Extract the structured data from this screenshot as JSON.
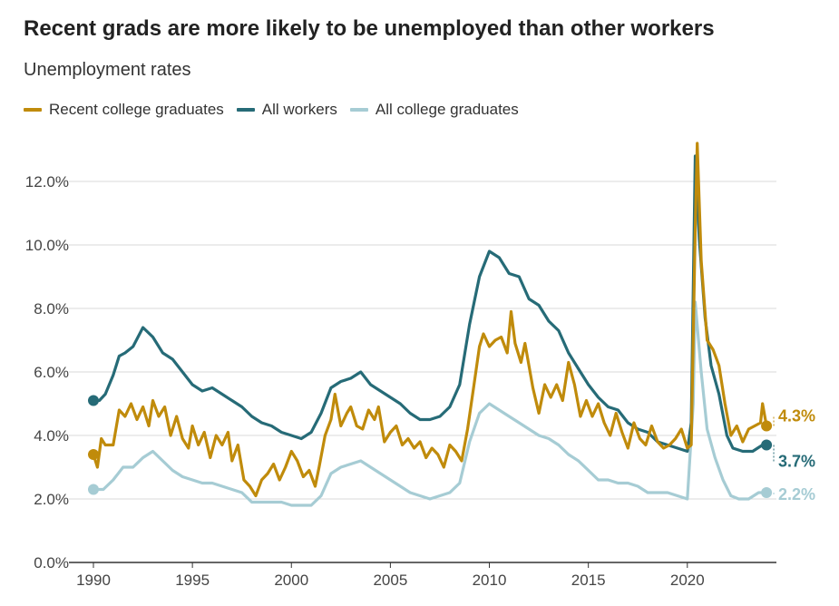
{
  "title": "Recent grads are more likely to be unemployed than other workers",
  "subtitle": "Unemployment rates",
  "colors": {
    "recent": "#c08b0b",
    "all_workers": "#266b77",
    "all_college": "#a6ccd4",
    "grid": "#d9d9d9",
    "axis": "#333333"
  },
  "chart_data": {
    "type": "line",
    "xlim": [
      1990,
      2024.5
    ],
    "ylim": [
      0,
      13
    ],
    "grid": true,
    "legend": "top-left",
    "x_ticks": [
      1990,
      1995,
      2000,
      2005,
      2010,
      2015,
      2020
    ],
    "x_tick_labels": [
      "1990",
      "1995",
      "2000",
      "2005",
      "2010",
      "2015",
      "2020"
    ],
    "y_ticks": [
      0,
      2,
      4,
      6,
      8,
      10,
      12
    ],
    "y_tick_labels": [
      "0.0%",
      "2.0%",
      "4.0%",
      "6.0%",
      "8.0%",
      "10.0%",
      "12.0%"
    ],
    "series": [
      {
        "name": "Recent college graduates",
        "key": "recent",
        "end_label": "4.3%",
        "points": [
          [
            1990,
            3.4
          ],
          [
            1990.2,
            3.0
          ],
          [
            1990.4,
            3.9
          ],
          [
            1990.6,
            3.7
          ],
          [
            1991,
            3.7
          ],
          [
            1991.3,
            4.8
          ],
          [
            1991.6,
            4.6
          ],
          [
            1991.9,
            5.0
          ],
          [
            1992.2,
            4.5
          ],
          [
            1992.5,
            4.9
          ],
          [
            1992.8,
            4.3
          ],
          [
            1993,
            5.1
          ],
          [
            1993.3,
            4.6
          ],
          [
            1993.6,
            4.9
          ],
          [
            1993.9,
            4.0
          ],
          [
            1994.2,
            4.6
          ],
          [
            1994.5,
            3.9
          ],
          [
            1994.8,
            3.6
          ],
          [
            1995,
            4.3
          ],
          [
            1995.3,
            3.7
          ],
          [
            1995.6,
            4.1
          ],
          [
            1995.9,
            3.3
          ],
          [
            1996.2,
            4.0
          ],
          [
            1996.5,
            3.7
          ],
          [
            1996.8,
            4.1
          ],
          [
            1997,
            3.2
          ],
          [
            1997.3,
            3.7
          ],
          [
            1997.6,
            2.6
          ],
          [
            1997.9,
            2.4
          ],
          [
            1998.2,
            2.1
          ],
          [
            1998.5,
            2.6
          ],
          [
            1998.8,
            2.8
          ],
          [
            1999.1,
            3.1
          ],
          [
            1999.4,
            2.6
          ],
          [
            1999.7,
            3.0
          ],
          [
            2000,
            3.5
          ],
          [
            2000.3,
            3.2
          ],
          [
            2000.6,
            2.7
          ],
          [
            2000.9,
            2.9
          ],
          [
            2001.2,
            2.4
          ],
          [
            2001.4,
            3.0
          ],
          [
            2001.7,
            4.0
          ],
          [
            2002,
            4.5
          ],
          [
            2002.2,
            5.3
          ],
          [
            2002.5,
            4.3
          ],
          [
            2002.8,
            4.7
          ],
          [
            2003,
            4.9
          ],
          [
            2003.3,
            4.3
          ],
          [
            2003.6,
            4.2
          ],
          [
            2003.9,
            4.8
          ],
          [
            2004.2,
            4.5
          ],
          [
            2004.4,
            4.9
          ],
          [
            2004.7,
            3.8
          ],
          [
            2005,
            4.1
          ],
          [
            2005.3,
            4.3
          ],
          [
            2005.6,
            3.7
          ],
          [
            2005.9,
            3.9
          ],
          [
            2006.2,
            3.6
          ],
          [
            2006.5,
            3.8
          ],
          [
            2006.8,
            3.3
          ],
          [
            2007.1,
            3.6
          ],
          [
            2007.4,
            3.4
          ],
          [
            2007.7,
            3.0
          ],
          [
            2008,
            3.7
          ],
          [
            2008.3,
            3.5
          ],
          [
            2008.6,
            3.2
          ],
          [
            2008.9,
            4.2
          ],
          [
            2009.2,
            5.5
          ],
          [
            2009.5,
            6.8
          ],
          [
            2009.7,
            7.2
          ],
          [
            2010,
            6.8
          ],
          [
            2010.3,
            7.0
          ],
          [
            2010.6,
            7.1
          ],
          [
            2010.9,
            6.6
          ],
          [
            2011.1,
            7.9
          ],
          [
            2011.3,
            6.9
          ],
          [
            2011.6,
            6.3
          ],
          [
            2011.8,
            6.9
          ],
          [
            2012.2,
            5.5
          ],
          [
            2012.5,
            4.7
          ],
          [
            2012.8,
            5.6
          ],
          [
            2013.1,
            5.2
          ],
          [
            2013.4,
            5.6
          ],
          [
            2013.7,
            5.1
          ],
          [
            2014,
            6.3
          ],
          [
            2014.3,
            5.6
          ],
          [
            2014.6,
            4.6
          ],
          [
            2014.9,
            5.1
          ],
          [
            2015.2,
            4.6
          ],
          [
            2015.5,
            5.0
          ],
          [
            2015.8,
            4.4
          ],
          [
            2016.1,
            4.0
          ],
          [
            2016.4,
            4.7
          ],
          [
            2016.7,
            4.1
          ],
          [
            2017,
            3.6
          ],
          [
            2017.3,
            4.4
          ],
          [
            2017.6,
            3.9
          ],
          [
            2017.9,
            3.7
          ],
          [
            2018.2,
            4.3
          ],
          [
            2018.5,
            3.8
          ],
          [
            2018.8,
            3.6
          ],
          [
            2019.1,
            3.7
          ],
          [
            2019.4,
            3.9
          ],
          [
            2019.7,
            4.2
          ],
          [
            2020,
            3.6
          ],
          [
            2020.2,
            3.7
          ],
          [
            2020.4,
            10.5
          ],
          [
            2020.5,
            13.2
          ],
          [
            2020.7,
            9.5
          ],
          [
            2021,
            7.0
          ],
          [
            2021.3,
            6.7
          ],
          [
            2021.6,
            6.2
          ],
          [
            2021.9,
            5.0
          ],
          [
            2022.2,
            4.0
          ],
          [
            2022.5,
            4.3
          ],
          [
            2022.8,
            3.8
          ],
          [
            2023.1,
            4.2
          ],
          [
            2023.4,
            4.3
          ],
          [
            2023.7,
            4.4
          ],
          [
            2023.8,
            5.0
          ],
          [
            2024,
            4.3
          ]
        ]
      },
      {
        "name": "All workers",
        "key": "all_workers",
        "end_label": "3.7%",
        "points": [
          [
            1990,
            5.1
          ],
          [
            1990.3,
            5.1
          ],
          [
            1990.6,
            5.3
          ],
          [
            1991,
            5.9
          ],
          [
            1991.3,
            6.5
          ],
          [
            1991.6,
            6.6
          ],
          [
            1992,
            6.8
          ],
          [
            1992.5,
            7.4
          ],
          [
            1993,
            7.1
          ],
          [
            1993.5,
            6.6
          ],
          [
            1994,
            6.4
          ],
          [
            1994.5,
            6.0
          ],
          [
            1995,
            5.6
          ],
          [
            1995.5,
            5.4
          ],
          [
            1996,
            5.5
          ],
          [
            1996.5,
            5.3
          ],
          [
            1997,
            5.1
          ],
          [
            1997.5,
            4.9
          ],
          [
            1998,
            4.6
          ],
          [
            1998.5,
            4.4
          ],
          [
            1999,
            4.3
          ],
          [
            1999.5,
            4.1
          ],
          [
            2000,
            4.0
          ],
          [
            2000.5,
            3.9
          ],
          [
            2001,
            4.1
          ],
          [
            2001.5,
            4.7
          ],
          [
            2002,
            5.5
          ],
          [
            2002.5,
            5.7
          ],
          [
            2003,
            5.8
          ],
          [
            2003.5,
            6.0
          ],
          [
            2004,
            5.6
          ],
          [
            2004.5,
            5.4
          ],
          [
            2005,
            5.2
          ],
          [
            2005.5,
            5.0
          ],
          [
            2006,
            4.7
          ],
          [
            2006.5,
            4.5
          ],
          [
            2007,
            4.5
          ],
          [
            2007.5,
            4.6
          ],
          [
            2008,
            4.9
          ],
          [
            2008.5,
            5.6
          ],
          [
            2009,
            7.5
          ],
          [
            2009.5,
            9.0
          ],
          [
            2010,
            9.8
          ],
          [
            2010.5,
            9.6
          ],
          [
            2011,
            9.1
          ],
          [
            2011.5,
            9.0
          ],
          [
            2012,
            8.3
          ],
          [
            2012.5,
            8.1
          ],
          [
            2013,
            7.6
          ],
          [
            2013.5,
            7.3
          ],
          [
            2014,
            6.6
          ],
          [
            2014.5,
            6.1
          ],
          [
            2015,
            5.6
          ],
          [
            2015.5,
            5.2
          ],
          [
            2016,
            4.9
          ],
          [
            2016.5,
            4.8
          ],
          [
            2017,
            4.4
          ],
          [
            2017.5,
            4.2
          ],
          [
            2018,
            4.1
          ],
          [
            2018.5,
            3.8
          ],
          [
            2019,
            3.7
          ],
          [
            2019.5,
            3.6
          ],
          [
            2020,
            3.5
          ],
          [
            2020.2,
            4.4
          ],
          [
            2020.4,
            12.8
          ],
          [
            2020.6,
            10.2
          ],
          [
            2020.9,
            7.7
          ],
          [
            2021.2,
            6.2
          ],
          [
            2021.6,
            5.3
          ],
          [
            2022,
            4.0
          ],
          [
            2022.3,
            3.6
          ],
          [
            2022.8,
            3.5
          ],
          [
            2023.3,
            3.5
          ],
          [
            2023.8,
            3.7
          ],
          [
            2024,
            3.7
          ]
        ]
      },
      {
        "name": "All college graduates",
        "key": "all_college",
        "end_label": "2.2%",
        "points": [
          [
            1990,
            2.3
          ],
          [
            1990.5,
            2.3
          ],
          [
            1991,
            2.6
          ],
          [
            1991.5,
            3.0
          ],
          [
            1992,
            3.0
          ],
          [
            1992.5,
            3.3
          ],
          [
            1993,
            3.5
          ],
          [
            1993.5,
            3.2
          ],
          [
            1994,
            2.9
          ],
          [
            1994.5,
            2.7
          ],
          [
            1995,
            2.6
          ],
          [
            1995.5,
            2.5
          ],
          [
            1996,
            2.5
          ],
          [
            1996.5,
            2.4
          ],
          [
            1997,
            2.3
          ],
          [
            1997.5,
            2.2
          ],
          [
            1998,
            1.9
          ],
          [
            1998.5,
            1.9
          ],
          [
            1999,
            1.9
          ],
          [
            1999.5,
            1.9
          ],
          [
            2000,
            1.8
          ],
          [
            2000.5,
            1.8
          ],
          [
            2001,
            1.8
          ],
          [
            2001.5,
            2.1
          ],
          [
            2002,
            2.8
          ],
          [
            2002.5,
            3.0
          ],
          [
            2003,
            3.1
          ],
          [
            2003.5,
            3.2
          ],
          [
            2004,
            3.0
          ],
          [
            2004.5,
            2.8
          ],
          [
            2005,
            2.6
          ],
          [
            2005.5,
            2.4
          ],
          [
            2006,
            2.2
          ],
          [
            2006.5,
            2.1
          ],
          [
            2007,
            2.0
          ],
          [
            2007.5,
            2.1
          ],
          [
            2008,
            2.2
          ],
          [
            2008.5,
            2.5
          ],
          [
            2009,
            3.8
          ],
          [
            2009.5,
            4.7
          ],
          [
            2010,
            5.0
          ],
          [
            2010.5,
            4.8
          ],
          [
            2011,
            4.6
          ],
          [
            2011.5,
            4.4
          ],
          [
            2012,
            4.2
          ],
          [
            2012.5,
            4.0
          ],
          [
            2013,
            3.9
          ],
          [
            2013.5,
            3.7
          ],
          [
            2014,
            3.4
          ],
          [
            2014.5,
            3.2
          ],
          [
            2015,
            2.9
          ],
          [
            2015.5,
            2.6
          ],
          [
            2016,
            2.6
          ],
          [
            2016.5,
            2.5
          ],
          [
            2017,
            2.5
          ],
          [
            2017.5,
            2.4
          ],
          [
            2018,
            2.2
          ],
          [
            2018.5,
            2.2
          ],
          [
            2019,
            2.2
          ],
          [
            2019.5,
            2.1
          ],
          [
            2020,
            2.0
          ],
          [
            2020.3,
            5.0
          ],
          [
            2020.4,
            8.2
          ],
          [
            2020.7,
            6.0
          ],
          [
            2021,
            4.2
          ],
          [
            2021.4,
            3.3
          ],
          [
            2021.8,
            2.6
          ],
          [
            2022.2,
            2.1
          ],
          [
            2022.6,
            2.0
          ],
          [
            2023.1,
            2.0
          ],
          [
            2023.6,
            2.2
          ],
          [
            2024,
            2.2
          ]
        ]
      }
    ]
  }
}
